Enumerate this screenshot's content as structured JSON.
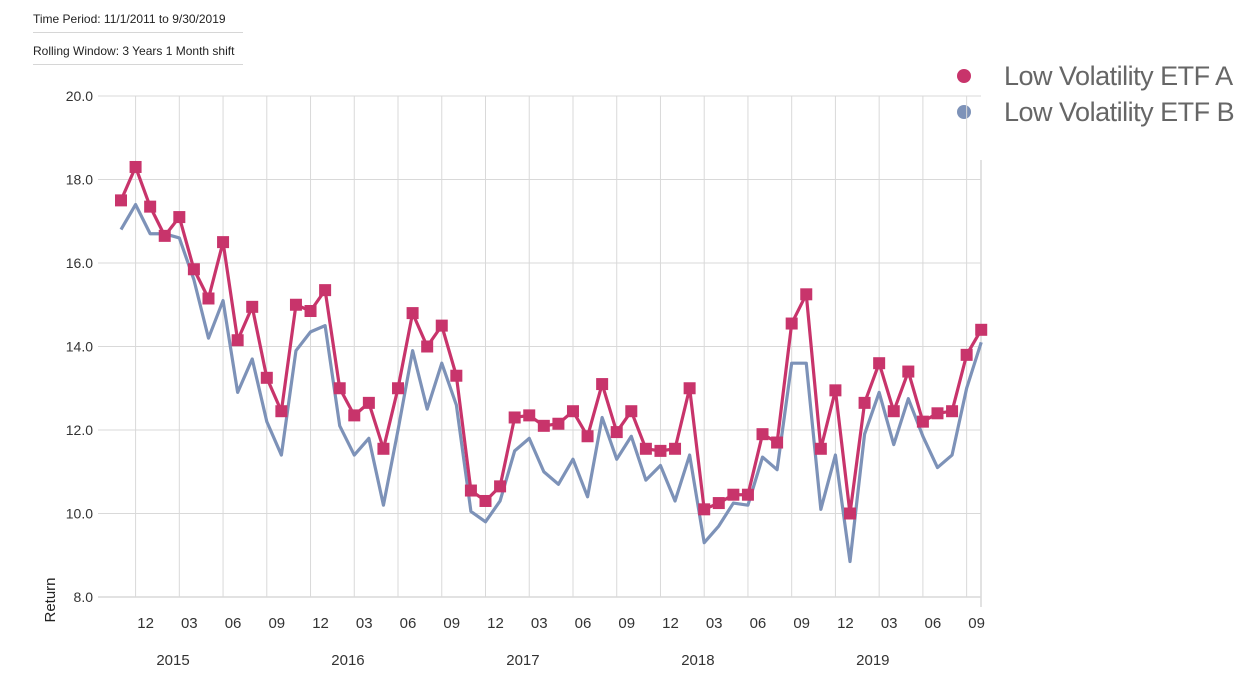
{
  "meta": {
    "time_period": "Time Period: 11/1/2011 to 9/30/2019",
    "rolling_window": "Rolling Window: 3 Years 1 Month shift"
  },
  "colors": {
    "series_a": "#c8346b",
    "series_b": "#7d92b8",
    "grid": "#d9d9d9",
    "axis_text": "#333333"
  },
  "legend": [
    {
      "label": "Low Volatility ETF A",
      "color": "#c8346b"
    },
    {
      "label": "Low Volatility ETF B",
      "color": "#7d92b8"
    }
  ],
  "chart_data": {
    "type": "line",
    "title": "",
    "xlabel": "",
    "ylabel": "Return",
    "ylim": [
      8.0,
      20.0
    ],
    "yticks": [
      "8.0",
      "10.0",
      "12.0",
      "14.0",
      "16.0",
      "18.0",
      "20.0"
    ],
    "x_tick_labels": [
      "12",
      "03",
      "06",
      "09",
      "12",
      "03",
      "06",
      "09",
      "12",
      "03",
      "06",
      "09",
      "12",
      "03",
      "06",
      "09",
      "12",
      "03",
      "06",
      "09"
    ],
    "x_year_labels": [
      "2015",
      "2016",
      "2017",
      "2018",
      "2019"
    ],
    "x_start": "2014-11",
    "x_end": "2019-09",
    "series": [
      {
        "name": "Low Volatility ETF A",
        "marker": "square",
        "values": [
          17.5,
          18.3,
          17.35,
          16.65,
          17.1,
          15.85,
          15.15,
          16.5,
          14.15,
          14.95,
          13.25,
          12.45,
          15.0,
          14.85,
          15.35,
          13.0,
          12.35,
          12.65,
          11.55,
          13.0,
          14.8,
          14.0,
          14.5,
          13.3,
          10.55,
          10.3,
          10.65,
          12.3,
          12.35,
          12.1,
          12.15,
          12.45,
          11.85,
          13.1,
          11.95,
          12.45,
          11.55,
          11.5,
          11.55,
          13.0,
          10.1,
          10.25,
          10.45,
          10.45,
          11.9,
          11.7,
          14.55,
          15.25,
          11.55,
          12.95,
          10.0,
          12.65,
          13.6,
          12.45,
          13.4,
          12.2,
          12.4,
          12.45,
          13.8,
          14.4
        ]
      },
      {
        "name": "Low Volatility ETF B",
        "marker": "none",
        "values": [
          16.8,
          17.4,
          16.7,
          16.7,
          16.6,
          15.6,
          14.2,
          15.1,
          12.9,
          13.7,
          12.2,
          11.4,
          13.9,
          14.35,
          14.5,
          12.1,
          11.4,
          11.8,
          10.2,
          12.0,
          13.9,
          12.5,
          13.6,
          12.6,
          10.05,
          9.8,
          10.3,
          11.5,
          11.8,
          11.0,
          10.7,
          11.3,
          10.4,
          12.3,
          11.3,
          11.85,
          10.8,
          11.15,
          10.3,
          11.4,
          9.3,
          9.7,
          10.25,
          10.2,
          11.35,
          11.05,
          13.6,
          13.6,
          10.1,
          11.4,
          8.85,
          11.9,
          12.9,
          11.65,
          12.75,
          11.85,
          11.1,
          11.4,
          13.0,
          14.1
        ]
      }
    ]
  }
}
